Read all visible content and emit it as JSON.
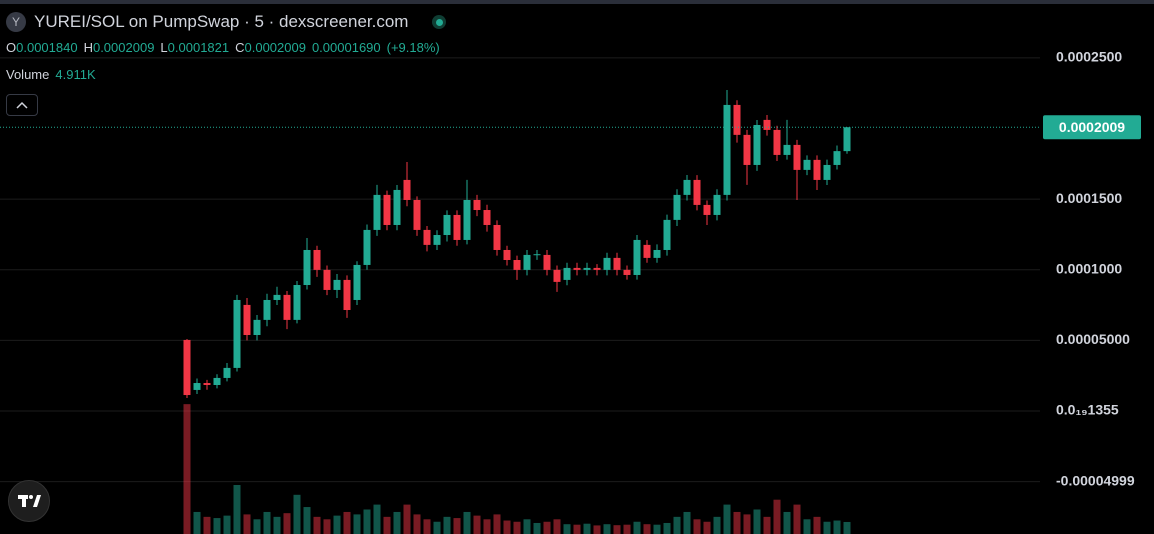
{
  "chart_data": {
    "type": "candlestick",
    "title": "YUREI/SOL on PumpSwap · 5 · dexscreener.com",
    "ohlc_legend": [
      {
        "key": "O",
        "value": {
          "value": 0.000184,
          "label": "0.0001840"
        }
      },
      {
        "key": "H",
        "value": {
          "value": 0.0002009,
          "label": "0.0002009"
        }
      },
      {
        "key": "L",
        "value": {
          "value": 0.0001821,
          "label": "0.0001821"
        }
      },
      {
        "key": "C",
        "value": {
          "value": 0.0002009,
          "label": "0.0002009"
        }
      }
    ],
    "change": {
      "value": 1.69e-05,
      "label": "0.00001690"
    },
    "change_percent": {
      "value": 9.18,
      "label": "(+9.18%)"
    },
    "volume_label": "Volume",
    "volume_current": {
      "value": 4911,
      "label": "4.911K"
    },
    "last_price": 0.0002009,
    "up_color": "#22ab94",
    "down_color": "#f23645",
    "ylim": [
      -8.71e-05,
      0.000291
    ],
    "yticks": [
      {
        "value": 0.00025,
        "label": "0.0002500"
      },
      {
        "value": 0.00015,
        "label": "0.0001500"
      },
      {
        "value": 0.0001,
        "label": "0.0001000"
      },
      {
        "value": 5e-05,
        "label": "0.00005000"
      },
      {
        "value": 1.355e-21,
        "label": "0.0₁₉1355"
      },
      -4.999e-05
    ],
    "grid": true,
    "volume_lim": [
      0,
      60000
    ],
    "candles": [
      [
        5.03e-05,
        5.1e-05,
        9.2e-06,
        1.13e-05
      ],
      [
        1.49e-05,
        2.3e-05,
        1.2e-05,
        1.98e-05
      ],
      [
        1.98e-05,
        2.2e-05,
        1.5e-05,
        1.84e-05
      ],
      [
        1.84e-05,
        2.6e-05,
        1.6e-05,
        2.34e-05
      ],
      [
        2.34e-05,
        3.4e-05,
        2.1e-05,
        3.05e-05
      ],
      [
        3.05e-05,
        8.22e-05,
        2.8e-05,
        7.86e-05
      ],
      [
        7.51e-05,
        8e-05,
        5e-05,
        5.38e-05
      ],
      [
        5.38e-05,
        6.8e-05,
        5e-05,
        6.45e-05
      ],
      [
        6.45e-05,
        8.3e-05,
        6e-05,
        7.86e-05
      ],
      [
        7.86e-05,
        8.8e-05,
        7.5e-05,
        8.22e-05
      ],
      [
        8.22e-05,
        8.5e-05,
        5.8e-05,
        6.45e-05
      ],
      [
        6.45e-05,
        9.2e-05,
        6.2e-05,
        8.92e-05
      ],
      [
        8.92e-05,
        0.0001225,
        8.6e-05,
        0.000114
      ],
      [
        0.000114,
        0.000117,
        9.5e-05,
        9.99e-05
      ],
      [
        9.99e-05,
        0.000103,
        8.2e-05,
        8.57e-05
      ],
      [
        8.57e-05,
        9.7e-05,
        8e-05,
        9.28e-05
      ],
      [
        9.28e-05,
        9.6e-05,
        6.59e-05,
        7.15e-05
      ],
      [
        7.86e-05,
        0.000106,
        7.5e-05,
        0.0001034
      ],
      [
        0.0001034,
        0.000132,
        0.0001,
        0.0001282
      ],
      [
        0.0001282,
        0.0001601,
        0.000124,
        0.000153
      ],
      [
        0.000153,
        0.000156,
        0.000128,
        0.0001317
      ],
      [
        0.0001317,
        0.00016,
        0.000128,
        0.0001565
      ],
      [
        0.0001636,
        0.0001763,
        0.000145,
        0.0001494
      ],
      [
        0.0001494,
        0.000152,
        0.000124,
        0.0001282
      ],
      [
        0.0001282,
        0.000131,
        0.000113,
        0.0001176
      ],
      [
        0.0001176,
        0.000128,
        0.000114,
        0.0001246
      ],
      [
        0.0001246,
        0.000142,
        0.00012,
        0.0001388
      ],
      [
        0.0001388,
        0.000142,
        0.000117,
        0.0001211
      ],
      [
        0.0001211,
        0.0001636,
        0.000118,
        0.0001494
      ],
      [
        0.0001494,
        0.000153,
        0.000138,
        0.0001423
      ],
      [
        0.0001423,
        0.000146,
        0.000127,
        0.0001317
      ],
      [
        0.0001317,
        0.000135,
        0.00011,
        0.000114
      ],
      [
        0.000114,
        0.000117,
        0.000103,
        0.0001069
      ],
      [
        0.0001069,
        0.00011,
        9.28e-05,
        9.99e-05
      ],
      [
        9.99e-05,
        0.000114,
        9.6e-05,
        0.0001105
      ],
      [
        0.0001105,
        0.000114,
        0.000107,
        0.000111
      ],
      [
        0.0001105,
        0.000114,
        9.6e-05,
        9.99e-05
      ],
      [
        9.99e-05,
        0.000103,
        8.43e-05,
        9.14e-05
      ],
      [
        9.28e-05,
        0.000105,
        8.9e-05,
        0.0001013
      ],
      [
        0.0001013,
        0.000105,
        9.6e-05,
        9.99e-05
      ],
      [
        9.99e-05,
        0.000105,
        9.6e-05,
        0.0001013
      ],
      [
        0.0001013,
        0.000104,
        9.6e-05,
        9.99e-05
      ],
      [
        9.99e-05,
        0.000112,
        9.6e-05,
        0.0001084
      ],
      [
        0.0001084,
        0.000112,
        9.6e-05,
        9.99e-05
      ],
      [
        9.99e-05,
        0.000103,
        9.3e-05,
        9.63e-05
      ],
      [
        9.63e-05,
        0.0001246,
        9.3e-05,
        0.0001211
      ],
      [
        0.0001176,
        0.000121,
        0.000105,
        0.0001084
      ],
      [
        0.0001084,
        0.000118,
        0.000105,
        0.000114
      ],
      [
        0.000114,
        0.000139,
        0.00011,
        0.0001353
      ],
      [
        0.0001353,
        0.000157,
        0.000131,
        0.000153
      ],
      [
        0.000153,
        0.0001671,
        0.000149,
        0.0001636
      ],
      [
        0.0001636,
        0.000167,
        0.000142,
        0.0001459
      ],
      [
        0.0001459,
        0.000149,
        0.0001317,
        0.0001388
      ],
      [
        0.0001388,
        0.000157,
        0.000135,
        0.000153
      ],
      [
        0.000153,
        0.0002273,
        0.000149,
        0.0002167
      ],
      [
        0.0002167,
        0.00022,
        0.00019,
        0.0001955
      ],
      [
        0.0001955,
        0.000199,
        0.0001601,
        0.0001742
      ],
      [
        0.0001742,
        0.000206,
        0.00017,
        0.0002025
      ],
      [
        0.0002061,
        0.0002096,
        0.000195,
        0.000199
      ],
      [
        0.000199,
        0.000202,
        0.000177,
        0.0001813
      ],
      [
        0.0001813,
        0.0002061,
        0.000178,
        0.0001884
      ],
      [
        0.0001884,
        0.000192,
        0.0001494,
        0.0001707
      ],
      [
        0.0001707,
        0.000181,
        0.000167,
        0.0001778
      ],
      [
        0.0001778,
        0.000181,
        0.0001565,
        0.0001636
      ],
      [
        0.0001636,
        0.000178,
        0.00016,
        0.0001742
      ],
      [
        0.0001742,
        0.000188,
        0.000171,
        0.000184
      ],
      [
        0.000184,
        0.0002009,
        0.0001821,
        0.0002009
      ]
    ],
    "volumes": [
      53000,
      9000,
      7000,
      6500,
      7500,
      20000,
      8000,
      6000,
      9000,
      7000,
      8500,
      16000,
      11000,
      7000,
      6000,
      7500,
      9000,
      8000,
      10000,
      12000,
      7000,
      9000,
      12000,
      8000,
      6000,
      5000,
      7000,
      6500,
      9000,
      7500,
      6000,
      8000,
      5500,
      5000,
      6000,
      4500,
      5000,
      6000,
      4000,
      3800,
      4200,
      3500,
      4000,
      3600,
      3800,
      5000,
      4000,
      3800,
      4500,
      7000,
      9000,
      6000,
      5000,
      7000,
      12000,
      9000,
      8000,
      10000,
      7000,
      14000,
      9000,
      12000,
      6000,
      7000,
      5000,
      5500,
      4911
    ]
  }
}
